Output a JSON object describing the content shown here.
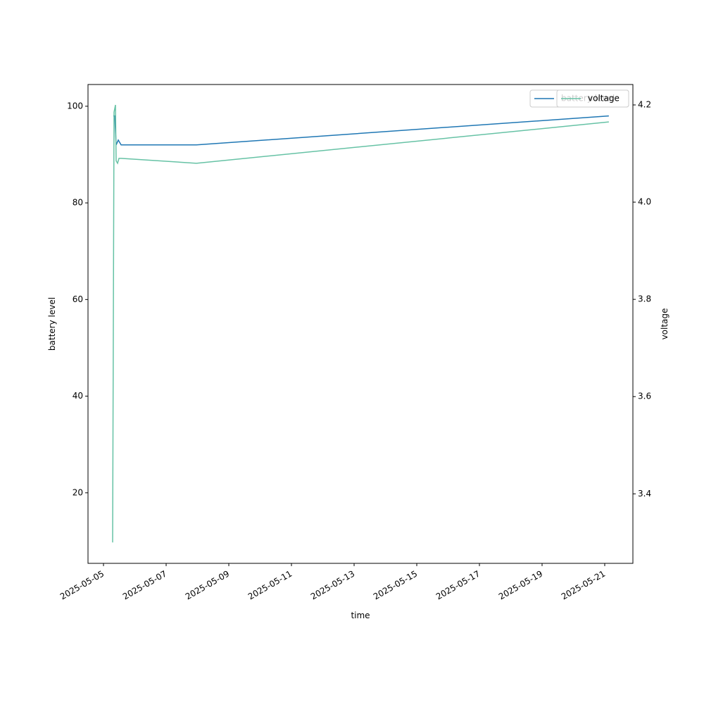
{
  "chart_data": {
    "type": "line",
    "x_label": "time",
    "y_label": "battery level",
    "y2_label": "voltage",
    "series": [
      {
        "name": "battery level",
        "color": "#1f77b4",
        "x": [
          "2025-05-05T07:33",
          "2025-05-05T08:38",
          "2025-05-05T09:42",
          "2025-05-05T11:20",
          "2025-05-05T13:30",
          "2025-05-07T23:10",
          "2025-05-21T03:10"
        ],
        "values": [
          98,
          98,
          92,
          93,
          92,
          92,
          98
        ]
      },
      {
        "name": "voltage",
        "color": "#66c2a5",
        "axis": "y2",
        "x": [
          "2025-05-05T07:00",
          "2025-05-05T08:05",
          "2025-05-05T09:10",
          "2025-05-05T09:42",
          "2025-05-05T10:47",
          "2025-05-05T11:52",
          "2025-05-05T13:30",
          "2025-05-07T23:10",
          "2025-05-21T03:10"
        ],
        "values": [
          3.3,
          4.185,
          4.2,
          4.085,
          4.08,
          4.09,
          4.09,
          4.08,
          4.165
        ]
      }
    ],
    "xlim": [
      "2025-05-04T12:08",
      "2025-05-21T21:35"
    ],
    "xticks": [
      "2025-05-05",
      "2025-05-07",
      "2025-05-09",
      "2025-05-11",
      "2025-05-13",
      "2025-05-15",
      "2025-05-17",
      "2025-05-19",
      "2025-05-21"
    ],
    "ylim": [
      5.4,
      104.5
    ],
    "yticks": [
      20,
      40,
      60,
      80,
      100
    ],
    "y2lim": [
      3.257,
      4.242
    ],
    "y2ticks": [
      3.4,
      3.6,
      3.8,
      {
        "value": 4,
        "label": "4.0"
      },
      4.2
    ],
    "legend": "upper right"
  }
}
